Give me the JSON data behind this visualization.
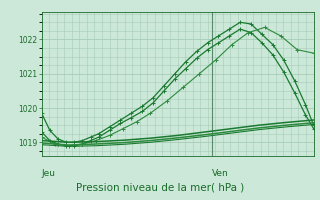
{
  "bg_color": "#cce8d8",
  "grid_color": "#a8ccb8",
  "line_color_main": "#1a6b2a",
  "title": "Pression niveau de la mer( hPa )",
  "xlabel_jeu": "Jeu",
  "xlabel_ven": "Ven",
  "ylim": [
    1018.6,
    1022.8
  ],
  "yticks": [
    1019,
    1020,
    1021,
    1022
  ],
  "vline_x": 0.625,
  "vline_color": "#5a8a6a",
  "series": [
    {
      "x": [
        0.0,
        0.03,
        0.06,
        0.09,
        0.12,
        0.15,
        0.18,
        0.21,
        0.25,
        0.29,
        0.33,
        0.37,
        0.41,
        0.45,
        0.49,
        0.53,
        0.57,
        0.61,
        0.65,
        0.69,
        0.73,
        0.77,
        0.81,
        0.85,
        0.89,
        0.93,
        0.97,
        1.0
      ],
      "y": [
        1019.85,
        1019.35,
        1019.1,
        1019.0,
        1019.0,
        1019.05,
        1019.15,
        1019.25,
        1019.45,
        1019.65,
        1019.85,
        1020.05,
        1020.3,
        1020.65,
        1021.0,
        1021.35,
        1021.65,
        1021.9,
        1022.1,
        1022.3,
        1022.5,
        1022.45,
        1022.15,
        1021.85,
        1021.4,
        1020.8,
        1020.1,
        1019.5
      ],
      "style": "-",
      "marker": "+",
      "color": "#1a7a30",
      "linewidth": 0.9,
      "markersize": 3.5
    },
    {
      "x": [
        0.0,
        0.03,
        0.06,
        0.09,
        0.12,
        0.15,
        0.18,
        0.21,
        0.25,
        0.29,
        0.33,
        0.37,
        0.41,
        0.45,
        0.49,
        0.53,
        0.57,
        0.61,
        0.65,
        0.69,
        0.73,
        0.77,
        0.81,
        0.85,
        0.89,
        0.93,
        0.97,
        1.0
      ],
      "y": [
        1019.3,
        1019.05,
        1018.95,
        1018.9,
        1018.9,
        1018.95,
        1019.05,
        1019.15,
        1019.35,
        1019.55,
        1019.72,
        1019.9,
        1020.15,
        1020.5,
        1020.85,
        1021.15,
        1021.45,
        1021.7,
        1021.9,
        1022.1,
        1022.3,
        1022.2,
        1021.9,
        1021.55,
        1021.05,
        1020.45,
        1019.8,
        1019.4
      ],
      "style": "-",
      "marker": "+",
      "color": "#1a7a30",
      "linewidth": 0.9,
      "markersize": 3.5
    },
    {
      "x": [
        0.0,
        0.05,
        0.1,
        0.15,
        0.2,
        0.25,
        0.3,
        0.35,
        0.4,
        0.46,
        0.52,
        0.58,
        0.64,
        0.7,
        0.76,
        0.82,
        0.88,
        0.94,
        1.0
      ],
      "y": [
        1019.15,
        1018.95,
        1018.9,
        1018.95,
        1019.05,
        1019.2,
        1019.4,
        1019.6,
        1019.85,
        1020.2,
        1020.6,
        1021.0,
        1021.4,
        1021.85,
        1022.2,
        1022.35,
        1022.1,
        1021.7,
        1021.6
      ],
      "style": "-",
      "marker": "+",
      "color": "#2d8a3e",
      "linewidth": 0.8,
      "markersize": 3.0
    },
    {
      "x": [
        0.0,
        0.1,
        0.2,
        0.3,
        0.4,
        0.5,
        0.6,
        0.7,
        0.8,
        0.9,
        1.0
      ],
      "y": [
        1019.05,
        1019.0,
        1019.02,
        1019.06,
        1019.12,
        1019.2,
        1019.3,
        1019.4,
        1019.5,
        1019.58,
        1019.65
      ],
      "style": "-",
      "marker": null,
      "color": "#1a7a30",
      "linewidth": 1.1,
      "markersize": 0
    },
    {
      "x": [
        0.0,
        0.1,
        0.2,
        0.3,
        0.4,
        0.5,
        0.6,
        0.7,
        0.8,
        0.9,
        1.0
      ],
      "y": [
        1018.98,
        1018.92,
        1018.95,
        1018.99,
        1019.05,
        1019.13,
        1019.22,
        1019.32,
        1019.42,
        1019.5,
        1019.57
      ],
      "style": "-",
      "marker": null,
      "color": "#2d8a3e",
      "linewidth": 1.1,
      "markersize": 0
    },
    {
      "x": [
        0.0,
        0.1,
        0.2,
        0.3,
        0.4,
        0.5,
        0.6,
        0.7,
        0.8,
        0.9,
        1.0
      ],
      "y": [
        1018.93,
        1018.88,
        1018.9,
        1018.94,
        1019.0,
        1019.08,
        1019.17,
        1019.27,
        1019.37,
        1019.45,
        1019.52
      ],
      "style": "-",
      "marker": null,
      "color": "#1a7a30",
      "linewidth": 0.8,
      "markersize": 0
    }
  ]
}
